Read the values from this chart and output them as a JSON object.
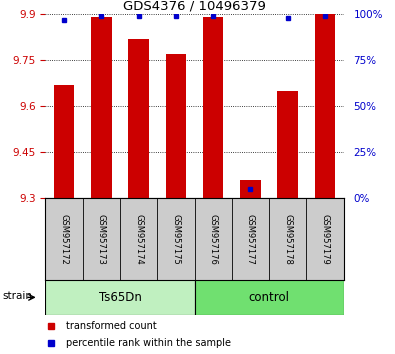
{
  "title": "GDS4376 / 10496379",
  "samples": [
    "GSM957172",
    "GSM957173",
    "GSM957174",
    "GSM957175",
    "GSM957176",
    "GSM957177",
    "GSM957178",
    "GSM957179"
  ],
  "bar_values": [
    9.67,
    9.89,
    9.82,
    9.77,
    9.89,
    9.36,
    9.65,
    9.9
  ],
  "percentile_values": [
    97,
    99,
    99,
    99,
    99,
    5,
    98,
    99
  ],
  "groups": [
    {
      "name": "Ts65Dn",
      "indices": [
        0,
        1,
        2,
        3
      ],
      "color": "#c0f0c0"
    },
    {
      "name": "control",
      "indices": [
        4,
        5,
        6,
        7
      ],
      "color": "#70e070"
    }
  ],
  "bar_color": "#cc0000",
  "dot_color": "#0000cc",
  "ylim": [
    9.3,
    9.9
  ],
  "yticks": [
    9.3,
    9.45,
    9.6,
    9.75,
    9.9
  ],
  "right_yticks": [
    0,
    25,
    50,
    75,
    100
  ],
  "background_color": "#ffffff",
  "plot_bg_color": "#ffffff",
  "tick_label_color_left": "#cc0000",
  "tick_label_color_right": "#0000cc",
  "bar_width": 0.55,
  "label_bg_color": "#cccccc",
  "legend_items": [
    "transformed count",
    "percentile rank within the sample"
  ]
}
